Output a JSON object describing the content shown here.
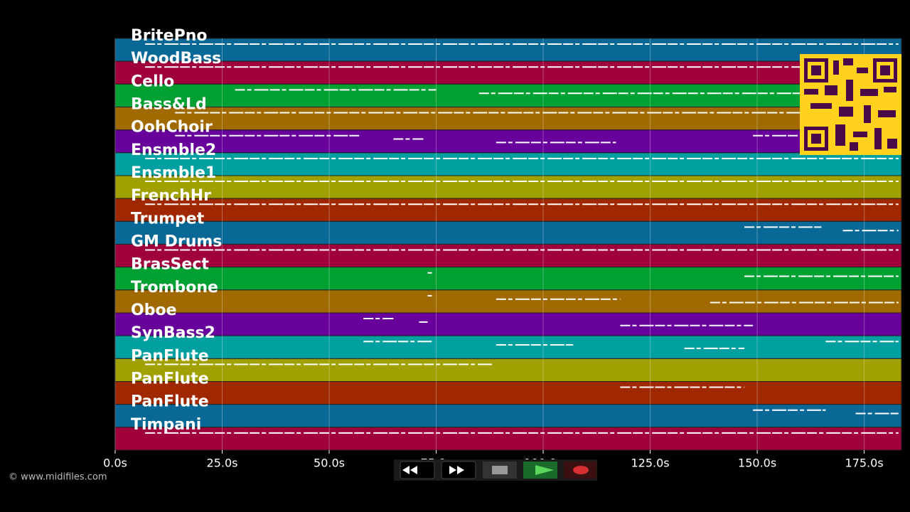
{
  "chart_data": {
    "type": "piano-roll",
    "xlim": [
      0,
      183.7
    ],
    "xticks": [
      {
        "value": 0,
        "label": "0.0s"
      },
      {
        "value": 25,
        "label": "25.0s"
      },
      {
        "value": 50,
        "label": "50.0s"
      },
      {
        "value": 75,
        "label": "75.0s"
      },
      {
        "value": 100,
        "label": "100.0s"
      },
      {
        "value": 125,
        "label": "125.0s"
      },
      {
        "value": 150,
        "label": "150.0s"
      },
      {
        "value": 175,
        "label": "175.0s"
      }
    ],
    "grid": true,
    "tracks": [
      {
        "name": "BritePno",
        "color": "#0a6896",
        "notes": [
          [
            7,
            183
          ]
        ]
      },
      {
        "name": "WoodBass",
        "color": "#a0003c",
        "notes": [
          [
            7,
            160
          ]
        ]
      },
      {
        "name": "Cello",
        "color": "#00a032",
        "notes": [
          [
            28,
            75
          ],
          [
            85,
            160
          ]
        ]
      },
      {
        "name": "Bass&Ld",
        "color": "#a06a00",
        "notes": [
          [
            14,
            160
          ]
        ]
      },
      {
        "name": "OohChoir",
        "color": "#68009c",
        "notes": [
          [
            14,
            57
          ],
          [
            65,
            72
          ],
          [
            89,
            117
          ],
          [
            149,
            160
          ]
        ]
      },
      {
        "name": "Ensmble2",
        "color": "#00a0a0",
        "notes": [
          [
            7,
            183
          ]
        ]
      },
      {
        "name": "Ensmble1",
        "color": "#a0a000",
        "notes": [
          [
            7,
            183
          ]
        ]
      },
      {
        "name": "FrenchHr",
        "color": "#a02800",
        "notes": [
          [
            7,
            183
          ]
        ]
      },
      {
        "name": "Trumpet",
        "color": "#0a6896",
        "notes": [
          [
            147,
            165
          ],
          [
            170,
            183
          ]
        ]
      },
      {
        "name": "GM Drums",
        "color": "#a0003c",
        "notes": [
          [
            7,
            183
          ]
        ]
      },
      {
        "name": "BrasSect",
        "color": "#00a032",
        "notes": [
          [
            73,
            74
          ],
          [
            147,
            183
          ]
        ]
      },
      {
        "name": "Trombone",
        "color": "#a06a00",
        "notes": [
          [
            73,
            74
          ],
          [
            89,
            118
          ],
          [
            139,
            183
          ]
        ]
      },
      {
        "name": "Oboe",
        "color": "#68009c",
        "notes": [
          [
            58,
            65
          ],
          [
            71,
            73
          ],
          [
            118,
            149
          ]
        ]
      },
      {
        "name": "SynBass2",
        "color": "#00a0a0",
        "notes": [
          [
            58,
            74
          ],
          [
            89,
            107
          ],
          [
            133,
            147
          ],
          [
            166,
            183
          ]
        ]
      },
      {
        "name": "PanFlute",
        "color": "#a0a000",
        "notes": [
          [
            7,
            88
          ]
        ]
      },
      {
        "name": "PanFlute",
        "color": "#a02800",
        "notes": [
          [
            118,
            147
          ]
        ]
      },
      {
        "name": "PanFlute",
        "color": "#0a6896",
        "notes": [
          [
            149,
            166
          ],
          [
            173,
            183
          ]
        ]
      },
      {
        "name": "Timpani",
        "color": "#a0003c",
        "notes": [
          [
            7,
            183
          ]
        ]
      }
    ]
  },
  "footer": {
    "copyright": "© www.midifiles.com"
  }
}
